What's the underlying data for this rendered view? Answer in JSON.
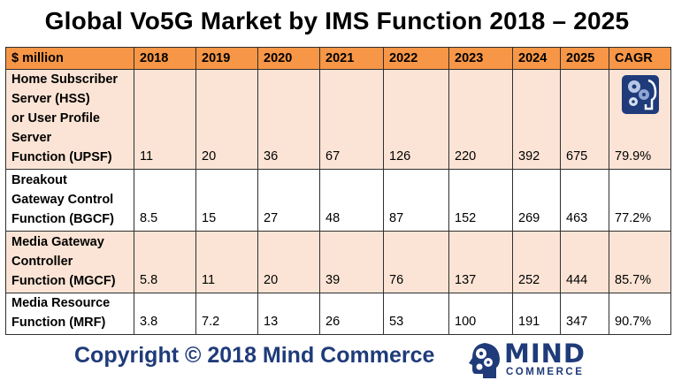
{
  "title": "Global Vo5G Market by IMS Function 2018 – 2025",
  "chart_data": {
    "type": "table",
    "title": "Global Vo5G Market by IMS Function 2018 – 2025",
    "columns": [
      "$ million",
      "2018",
      "2019",
      "2020",
      "2021",
      "2022",
      "2023",
      "2024",
      "2025",
      "CAGR"
    ],
    "rows": [
      {
        "label_lines": [
          "Home Subscriber",
          "Server (HSS)",
          "or User Profile",
          "Server",
          "Function (UPSF)"
        ],
        "values": [
          "11",
          "20",
          "36",
          "67",
          "126",
          "220",
          "392",
          "675",
          "79.9%"
        ]
      },
      {
        "label_lines": [
          "Breakout",
          "Gateway Control",
          "Function (BGCF)"
        ],
        "values": [
          "8.5",
          "15",
          "27",
          "48",
          "87",
          "152",
          "269",
          "463",
          "77.2%"
        ]
      },
      {
        "label_lines": [
          "Media Gateway",
          "Controller",
          "Function (MGCF)"
        ],
        "values": [
          "5.8",
          "11",
          "20",
          "39",
          "76",
          "137",
          "252",
          "444",
          "85.7%"
        ]
      },
      {
        "label_lines": [
          "Media Resource",
          "Function (MRF)"
        ],
        "values": [
          "3.8",
          "7.2",
          "13",
          "26",
          "53",
          "100",
          "191",
          "347",
          "90.7%"
        ]
      }
    ]
  },
  "footer": {
    "copyright": "Copyright © 2018 Mind Commerce"
  },
  "brand": {
    "name": "MIND",
    "tagline": "COMMERCE"
  },
  "colors": {
    "header": "#f79646",
    "shade": "#fbe4d5",
    "brand": "#1f3b7a"
  }
}
